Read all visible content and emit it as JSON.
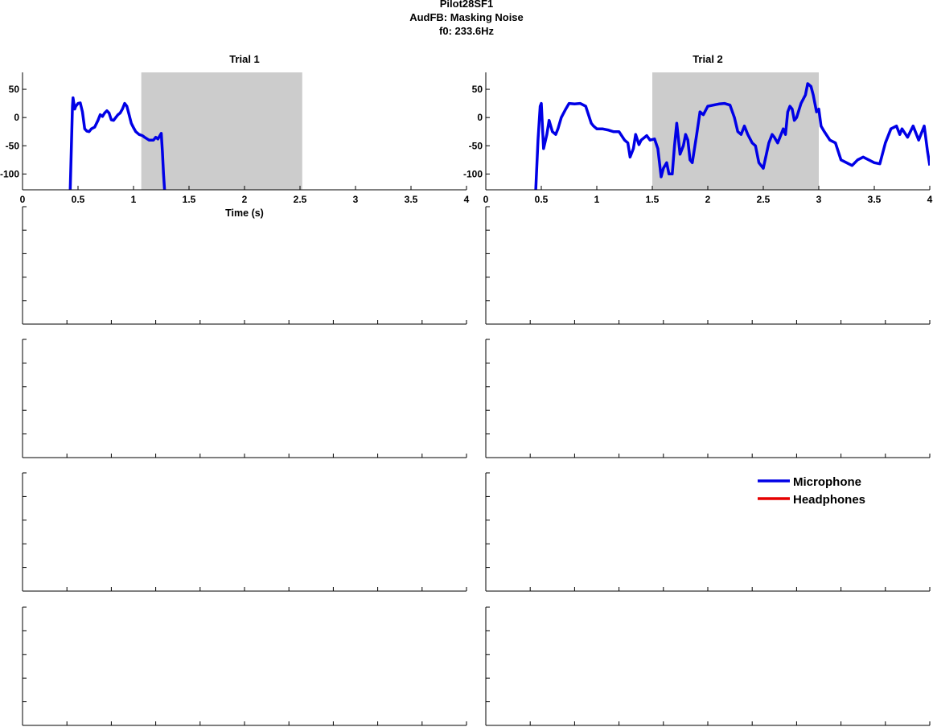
{
  "figure": {
    "title_lines": [
      "Pilot28SF1",
      "AudFB: Masking Noise",
      "f0: 233.6Hz"
    ]
  },
  "legend": {
    "items": [
      {
        "label": "Microphone",
        "color": "#0000e6"
      },
      {
        "label": "Headphones",
        "color": "#e60000"
      }
    ]
  },
  "chart_data": [
    {
      "type": "line",
      "title": "Trial 1",
      "xlabel": "Time (s)",
      "ylabel": "",
      "xlim": [
        0,
        4
      ],
      "ylim": [
        -128,
        80
      ],
      "xticks": [
        0,
        0.5,
        1,
        1.5,
        2,
        2.5,
        3,
        3.5,
        4
      ],
      "xtick_labels": [
        "0",
        "0.5",
        "1",
        "1.5",
        "2",
        "2.5",
        "3",
        "3.5",
        "4"
      ],
      "yticks": [
        -100,
        -50,
        0,
        50
      ],
      "ytick_labels": [
        "-100",
        "-50",
        "0",
        "50"
      ],
      "shaded_interval": [
        1.07,
        2.52
      ],
      "shade_color": "#cccccc",
      "series": [
        {
          "name": "Microphone",
          "color": "#0000e6",
          "x": [
            0.43,
            0.45,
            0.455,
            0.47,
            0.48,
            0.5,
            0.52,
            0.54,
            0.56,
            0.58,
            0.6,
            0.62,
            0.65,
            0.68,
            0.7,
            0.72,
            0.74,
            0.76,
            0.78,
            0.8,
            0.82,
            0.84,
            0.86,
            0.88,
            0.9,
            0.92,
            0.94,
            0.96,
            0.98,
            1.0,
            1.02,
            1.05,
            1.08,
            1.1,
            1.14,
            1.18,
            1.2,
            1.22,
            1.25,
            1.26,
            1.27,
            1.28
          ],
          "y": [
            -128,
            20,
            35,
            15,
            20,
            25,
            26,
            10,
            -20,
            -24,
            -25,
            -20,
            -17,
            -5,
            5,
            2,
            8,
            12,
            8,
            -4,
            -5,
            0,
            5,
            8,
            15,
            25,
            20,
            5,
            -10,
            -18,
            -25,
            -30,
            -32,
            -35,
            -40,
            -40,
            -35,
            -38,
            -28,
            -60,
            -100,
            -128
          ]
        },
        {
          "name": "Headphones",
          "color": "#e60000",
          "x": [],
          "y": []
        }
      ]
    },
    {
      "type": "line",
      "title": "Trial 2",
      "xlabel": "",
      "ylabel": "",
      "xlim": [
        0,
        4
      ],
      "ylim": [
        -128,
        80
      ],
      "xticks": [
        0,
        0.5,
        1,
        1.5,
        2,
        2.5,
        3,
        3.5,
        4
      ],
      "xtick_labels": [
        "0",
        "0.5",
        "1",
        "1.5",
        "2",
        "2.5",
        "3",
        "3.5",
        "4"
      ],
      "yticks": [
        -100,
        -50,
        0,
        50
      ],
      "ytick_labels": [
        "-100",
        "-50",
        "0",
        "50"
      ],
      "shaded_interval": [
        1.5,
        3.0
      ],
      "shade_color": "#cccccc",
      "series": [
        {
          "name": "Microphone",
          "color": "#0000e6",
          "x": [
            0.45,
            0.47,
            0.49,
            0.5,
            0.52,
            0.55,
            0.57,
            0.6,
            0.63,
            0.65,
            0.68,
            0.72,
            0.75,
            0.8,
            0.85,
            0.9,
            0.95,
            0.97,
            1.0,
            1.05,
            1.1,
            1.15,
            1.2,
            1.25,
            1.28,
            1.3,
            1.33,
            1.35,
            1.38,
            1.4,
            1.45,
            1.48,
            1.52,
            1.55,
            1.58,
            1.6,
            1.63,
            1.65,
            1.68,
            1.7,
            1.72,
            1.75,
            1.78,
            1.8,
            1.82,
            1.84,
            1.86,
            1.9,
            1.93,
            1.96,
            2.0,
            2.05,
            2.1,
            2.15,
            2.2,
            2.24,
            2.27,
            2.3,
            2.33,
            2.36,
            2.4,
            2.43,
            2.46,
            2.5,
            2.55,
            2.58,
            2.6,
            2.63,
            2.65,
            2.68,
            2.7,
            2.72,
            2.74,
            2.76,
            2.78,
            2.8,
            2.84,
            2.88,
            2.9,
            2.93,
            2.95,
            2.98,
            3.0,
            3.02,
            3.05,
            3.1,
            3.15,
            3.2,
            3.25,
            3.3,
            3.35,
            3.4,
            3.45,
            3.5,
            3.55,
            3.6,
            3.65,
            3.7,
            3.73,
            3.75,
            3.8,
            3.85,
            3.9,
            3.95,
            3.98,
            4.0
          ],
          "y": [
            -128,
            -40,
            20,
            25,
            -55,
            -30,
            -5,
            -25,
            -30,
            -20,
            0,
            15,
            25,
            24,
            25,
            20,
            -10,
            -15,
            -20,
            -20,
            -22,
            -25,
            -25,
            -40,
            -45,
            -70,
            -55,
            -30,
            -48,
            -40,
            -32,
            -40,
            -38,
            -55,
            -105,
            -90,
            -80,
            -100,
            -100,
            -50,
            -10,
            -65,
            -50,
            -30,
            -40,
            -75,
            -80,
            -30,
            10,
            5,
            20,
            22,
            24,
            25,
            22,
            0,
            -25,
            -30,
            -15,
            -30,
            -45,
            -50,
            -80,
            -90,
            -45,
            -30,
            -35,
            -45,
            -35,
            -20,
            -30,
            10,
            20,
            15,
            -5,
            0,
            25,
            40,
            60,
            55,
            40,
            10,
            15,
            -15,
            -25,
            -40,
            -45,
            -75,
            -80,
            -85,
            -75,
            -70,
            -75,
            -80,
            -82,
            -45,
            -20,
            -15,
            -30,
            -20,
            -35,
            -15,
            -40,
            -15,
            -60,
            -85
          ]
        },
        {
          "name": "Headphones",
          "color": "#e60000",
          "x": [],
          "y": []
        }
      ]
    }
  ]
}
